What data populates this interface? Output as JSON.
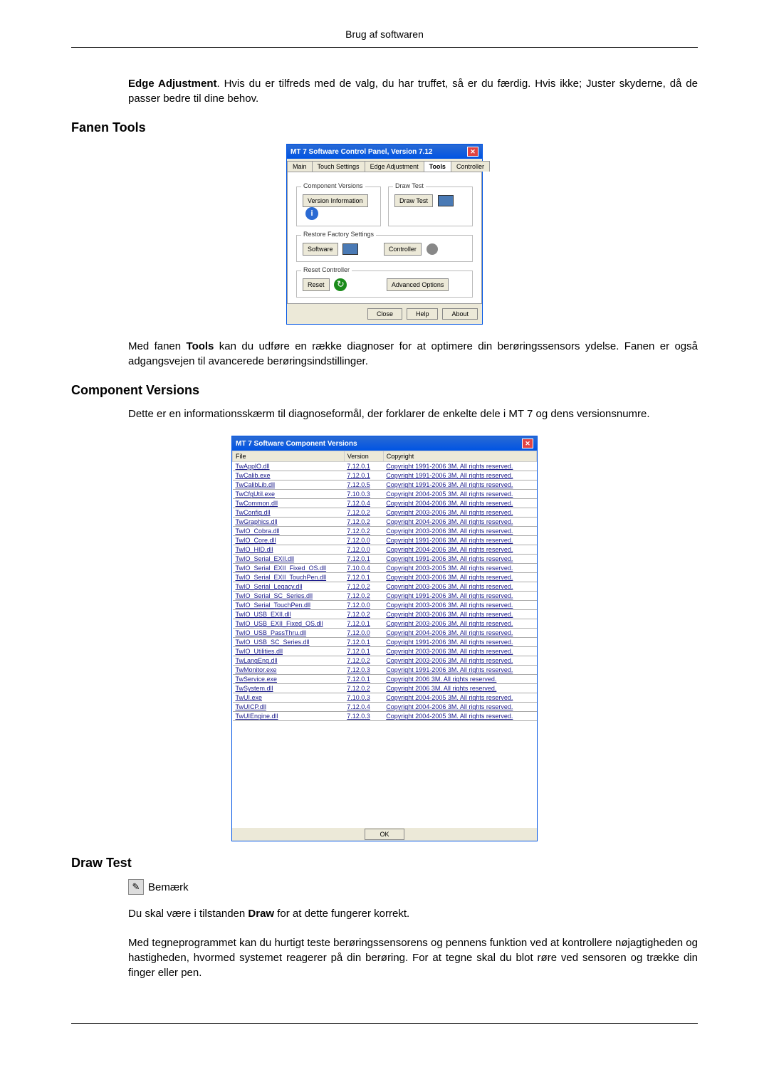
{
  "page_header": "Brug af softwaren",
  "intro_para": {
    "bold_lead": "Edge Adjustment",
    "rest": ". Hvis du er tilfreds med de valg, du har truffet, så er du færdig. Hvis ikke; Juster skyderne, då de passer bedre til dine behov."
  },
  "section1_heading": "Fanen Tools",
  "tools_dialog": {
    "title": "MT 7 Software Control Panel, Version 7.12",
    "tabs": [
      "Main",
      "Touch Settings",
      "Edge Adjustment",
      "Tools",
      "Controller"
    ],
    "active_tab_index": 3,
    "groups": {
      "component_versions": {
        "legend": "Component Versions",
        "button": "Version Information"
      },
      "draw_test": {
        "legend": "Draw Test",
        "button": "Draw Test"
      },
      "restore": {
        "legend": "Restore Factory Settings",
        "button_sw": "Software",
        "button_ctrl": "Controller"
      },
      "reset": {
        "legend": "Reset Controller",
        "button": "Reset",
        "advanced": "Advanced Options"
      }
    },
    "footer": {
      "close": "Close",
      "help": "Help",
      "about": "About"
    }
  },
  "section1_text": "Med fanen Tools kan du udføre en række diagnoser for at optimere din berøringssensors ydelse. Fanen er også adgangsvejen til avancerede berøringsindstillinger.",
  "section1_bold_word": "Tools",
  "section2_heading": "Component Versions",
  "section2_text": "Dette er en informationsskærm til diagnoseformål, der forklarer de enkelte dele i MT 7 og dens versionsnumre.",
  "versions_dialog": {
    "title": "MT 7 Software Component Versions",
    "headers": {
      "file": "File",
      "version": "Version",
      "copyright": "Copyright"
    },
    "rows": [
      {
        "file": "TwApplO.dll",
        "version": "7.12.0.1",
        "copyright": "Copyright 1991-2006 3M. All rights reserved."
      },
      {
        "file": "TwCalib.exe",
        "version": "7.12.0.1",
        "copyright": "Copyright 1991-2006 3M. All rights reserved."
      },
      {
        "file": "TwCalibLib.dll",
        "version": "7.12.0.5",
        "copyright": "Copyright 1991-2006 3M. All rights reserved."
      },
      {
        "file": "TwCfgUtil.exe",
        "version": "7.10.0.3",
        "copyright": "Copyright 2004-2005 3M. All rights reserved."
      },
      {
        "file": "TwCommon.dll",
        "version": "7.12.0.4",
        "copyright": "Copyright 2004-2006 3M. All rights reserved."
      },
      {
        "file": "TwConfig.dll",
        "version": "7.12.0.2",
        "copyright": "Copyright 2003-2006 3M. All rights reserved."
      },
      {
        "file": "TwGraphics.dll",
        "version": "7.12.0.2",
        "copyright": "Copyright 2004-2006 3M. All rights reserved."
      },
      {
        "file": "TwIO_Cobra.dll",
        "version": "7.12.0.2",
        "copyright": "Copyright 2003-2006 3M. All rights reserved."
      },
      {
        "file": "TwIO_Core.dll",
        "version": "7.12.0.0",
        "copyright": "Copyright 1991-2006 3M. All rights reserved."
      },
      {
        "file": "TwIO_HID.dll",
        "version": "7.12.0.0",
        "copyright": "Copyright 2004-2006 3M. All rights reserved."
      },
      {
        "file": "TwIO_Serial_EXII.dll",
        "version": "7.12.0.1",
        "copyright": "Copyright 1991-2006 3M. All rights reserved."
      },
      {
        "file": "TwIO_Serial_EXII_Fixed_OS.dll",
        "version": "7.10.0.4",
        "copyright": "Copyright 2003-2005 3M. All rights reserved."
      },
      {
        "file": "TwIO_Serial_EXII_TouchPen.dll",
        "version": "7.12.0.1",
        "copyright": "Copyright 2003-2006 3M. All rights reserved."
      },
      {
        "file": "TwIO_Serial_Legacy.dll",
        "version": "7.12.0.2",
        "copyright": "Copyright 2003-2006 3M. All rights reserved."
      },
      {
        "file": "TwIO_Serial_SC_Series.dll",
        "version": "7.12.0.2",
        "copyright": "Copyright 1991-2006 3M. All rights reserved."
      },
      {
        "file": "TwIO_Serial_TouchPen.dll",
        "version": "7.12.0.0",
        "copyright": "Copyright 2003-2006 3M. All rights reserved."
      },
      {
        "file": "TwIO_USB_EXII.dll",
        "version": "7.12.0.2",
        "copyright": "Copyright 2003-2006 3M. All rights reserved."
      },
      {
        "file": "TwIO_USB_EXII_Fixed_OS.dll",
        "version": "7.12.0.1",
        "copyright": "Copyright 2003-2006 3M. All rights reserved."
      },
      {
        "file": "TwIO_USB_PassThru.dll",
        "version": "7.12.0.0",
        "copyright": "Copyright 2004-2006 3M. All rights reserved."
      },
      {
        "file": "TwIO_USB_SC_Series.dll",
        "version": "7.12.0.1",
        "copyright": "Copyright 1991-2006 3M. All rights reserved."
      },
      {
        "file": "TwIO_Utilities.dll",
        "version": "7.12.0.1",
        "copyright": "Copyright 2003-2006 3M. All rights reserved."
      },
      {
        "file": "TwLangEng.dll",
        "version": "7.12.0.2",
        "copyright": "Copyright 2003-2006 3M. All rights reserved."
      },
      {
        "file": "TwMonitor.exe",
        "version": "7.12.0.3",
        "copyright": "Copyright 1991-2006 3M. All rights reserved."
      },
      {
        "file": "TwService.exe",
        "version": "7.12.0.1",
        "copyright": "Copyright 2006 3M. All rights reserved."
      },
      {
        "file": "TwSystem.dll",
        "version": "7.12.0.2",
        "copyright": "Copyright 2006 3M. All rights reserved."
      },
      {
        "file": "TwUI.exe",
        "version": "7.10.0.3",
        "copyright": "Copyright 2004-2005 3M. All rights reserved."
      },
      {
        "file": "TwUICP.dll",
        "version": "7.12.0.4",
        "copyright": "Copyright 2004-2006 3M. All rights reserved."
      },
      {
        "file": "TwUIEngine.dll",
        "version": "7.12.0.3",
        "copyright": "Copyright 2004-2005 3M. All rights reserved."
      }
    ],
    "ok": "OK"
  },
  "section3_heading": "Draw Test",
  "note_label": "Bemærk",
  "section3_text1": "Du skal være i tilstanden Draw for at dette fungerer korrekt.",
  "section3_bold_word": "Draw",
  "section3_text2": "Med tegneprogrammet kan du hurtigt teste berøringssensorens og pennens funktion ved at kontrollere nøjagtigheden og hastigheden, hvormed systemet reagerer på din berøring. For at tegne skal du blot røre ved sensoren og trække din finger eller pen."
}
